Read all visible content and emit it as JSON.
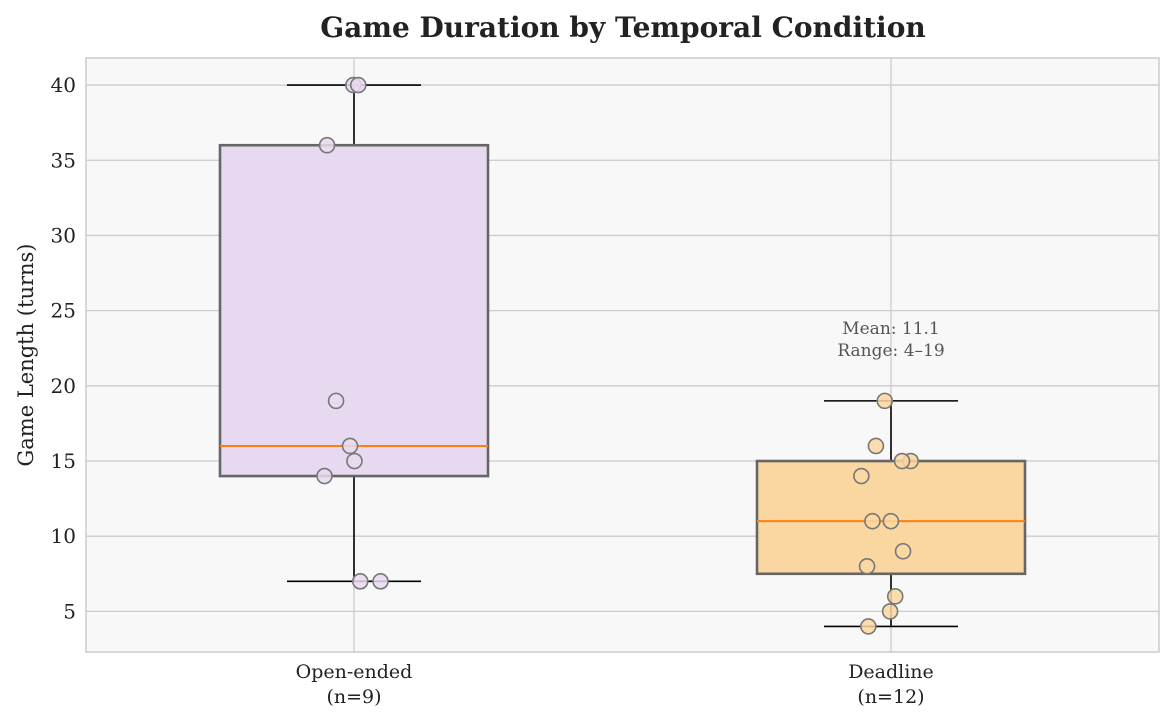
{
  "chart_data": {
    "type": "box",
    "title": "Game Duration by Temporal Condition",
    "xlabel": "",
    "ylabel": "Game Length (turns)",
    "ylim": [
      2.3,
      41.8
    ],
    "yticks": [
      5,
      10,
      15,
      20,
      25,
      30,
      35,
      40
    ],
    "grid": true,
    "categories": [
      {
        "label_line1": "Open-ended",
        "label_line2": "(n=9)",
        "color": "#e7d9ef",
        "q1": 14,
        "median": 16,
        "q3": 36,
        "whisker_low": 7,
        "whisker_high": 40,
        "points": [
          40,
          40,
          36,
          19,
          16,
          15,
          14,
          7,
          7
        ]
      },
      {
        "label_line1": "Deadline",
        "label_line2": "(n=12)",
        "color": "#fad7a1",
        "q1": 7.5,
        "median": 11,
        "q3": 15,
        "whisker_low": 4,
        "whisker_high": 19,
        "points": [
          19,
          16,
          15,
          15,
          14,
          11,
          11,
          9,
          8,
          6,
          5,
          4
        ]
      }
    ],
    "annotation": {
      "line1": "Mean: 11.1",
      "line2": "Range: 4–19"
    },
    "colors": {
      "median": "#ff7f0e",
      "box_edge": "#666666",
      "whisker": "#000000",
      "grid": "#cccccc",
      "plot_bg": "#f8f8f8",
      "point_edge": "#777777"
    }
  }
}
